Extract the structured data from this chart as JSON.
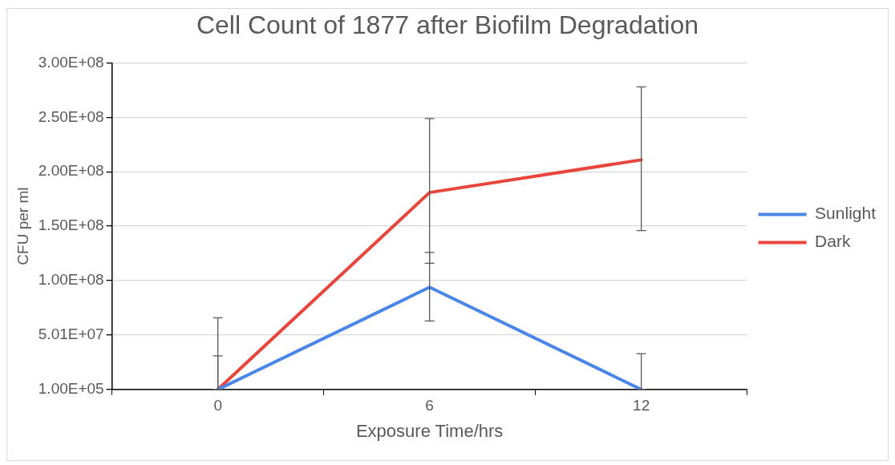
{
  "chart_data": {
    "type": "line",
    "title": "Cell Count of 1877 after Biofilm Degradation",
    "xlabel": "Exposure Time/hrs",
    "ylabel": "CFU per ml",
    "categories": [
      "0",
      "6",
      "12"
    ],
    "series": [
      {
        "name": "Sunlight",
        "color": "#4a86e8",
        "values": [
          100000,
          94000000,
          100000
        ],
        "errors": [
          [
            100000,
            31000000
          ],
          [
            63000000,
            126000000
          ],
          [
            100000,
            33000000
          ]
        ]
      },
      {
        "name": "Dark",
        "color": "#e8453c",
        "values": [
          100000,
          181000000,
          211000000
        ],
        "errors": [
          [
            100000,
            66000000
          ],
          [
            116000000,
            249000000
          ],
          [
            146000000,
            278000000
          ]
        ]
      }
    ],
    "ylim": [
      100000,
      300100000
    ],
    "yticks": [
      {
        "value": 100000,
        "label": "1.00E+05"
      },
      {
        "value": 50100000,
        "label": "5.01E+07"
      },
      {
        "value": 100100000,
        "label": "1.00E+08"
      },
      {
        "value": 150100000,
        "label": "1.50E+08"
      },
      {
        "value": 200100000,
        "label": "2.00E+08"
      },
      {
        "value": 250100000,
        "label": "2.50E+08"
      },
      {
        "value": 300100000,
        "label": "3.00E+08"
      }
    ],
    "grid": "y",
    "legend": "right",
    "marker": "none",
    "line_style": "solid"
  }
}
